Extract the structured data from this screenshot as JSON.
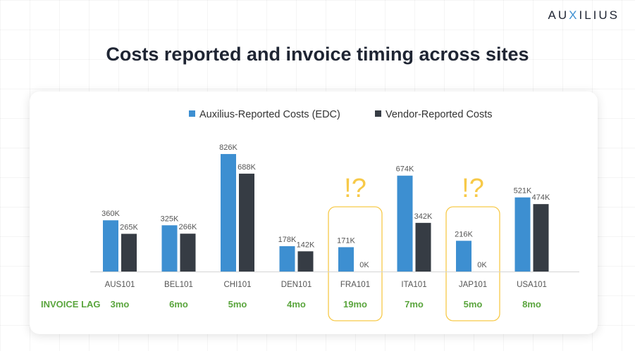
{
  "brand": {
    "prefix": "AU",
    "accent": "X",
    "suffix": "ILIUS"
  },
  "page_title": "Costs reported and invoice timing across sites",
  "invoice_lag_label": "INVOICE LAG",
  "flag_text": "!?",
  "colors": {
    "edc": "#3d8fd1",
    "vendor": "#363c44",
    "lag": "#5aa53d",
    "flag": "#f7c948",
    "axis": "#d4d4d4",
    "text": "#555555"
  },
  "chart_data": {
    "type": "bar",
    "categories": [
      "AUS101",
      "BEL101",
      "CHI101",
      "DEN101",
      "FRA101",
      "ITA101",
      "JAP101",
      "USA101"
    ],
    "series": [
      {
        "name": "Auxilius-Reported Costs (EDC)",
        "values": [
          360,
          325,
          826,
          178,
          171,
          674,
          216,
          521
        ],
        "labels": [
          "360K",
          "325K",
          "826K",
          "178K",
          "171K",
          "674K",
          "216K",
          "521K"
        ],
        "color": "#3d8fd1"
      },
      {
        "name": "Vendor-Reported Costs",
        "values": [
          265,
          266,
          688,
          142,
          0,
          342,
          0,
          474
        ],
        "labels": [
          "265K",
          "266K",
          "688K",
          "142K",
          "0K",
          "342K",
          "0K",
          "474K"
        ],
        "color": "#363c44"
      }
    ],
    "invoice_lag": [
      "3mo",
      "6mo",
      "5mo",
      "4mo",
      "19mo",
      "7mo",
      "5mo",
      "8mo"
    ],
    "flagged": [
      "FRA101",
      "JAP101"
    ],
    "legend_position": "top",
    "unit": "K",
    "ylim": [
      0,
      900
    ],
    "grid": false
  }
}
